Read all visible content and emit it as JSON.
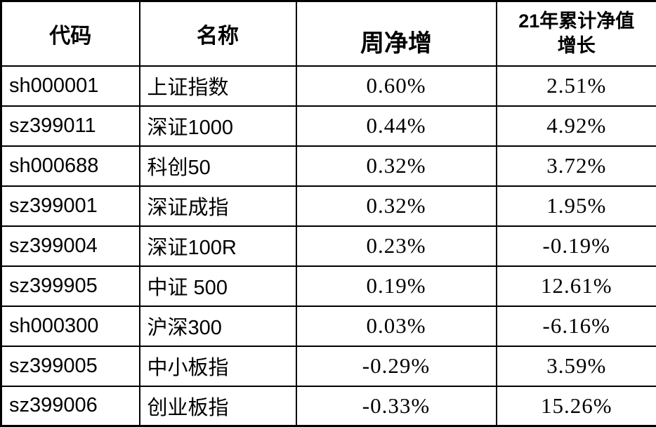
{
  "table": {
    "headers": [
      "代码",
      "名称",
      "周净增",
      "21年累计净值\n增长"
    ]
  },
  "chart_data": {
    "type": "table",
    "title": "",
    "columns": [
      "代码",
      "名称",
      "周净增",
      "21年累计净值增长"
    ],
    "rows": [
      [
        "sh000001",
        "上证指数",
        "0.60%",
        "2.51%"
      ],
      [
        "sz399011",
        "深证1000",
        "0.44%",
        "4.92%"
      ],
      [
        "sh000688",
        "科创50",
        "0.32%",
        "3.72%"
      ],
      [
        "sz399001",
        "深证成指",
        "0.32%",
        "1.95%"
      ],
      [
        "sz399004",
        "深证100R",
        "0.23%",
        "-0.19%"
      ],
      [
        "sz399905",
        "中证 500",
        "0.19%",
        "12.61%"
      ],
      [
        "sh000300",
        "沪深300",
        "0.03%",
        "-6.16%"
      ],
      [
        "sz399005",
        "中小板指",
        "-0.29%",
        "3.59%"
      ],
      [
        "sz399006",
        "创业板指",
        "-0.33%",
        "15.26%"
      ]
    ]
  }
}
